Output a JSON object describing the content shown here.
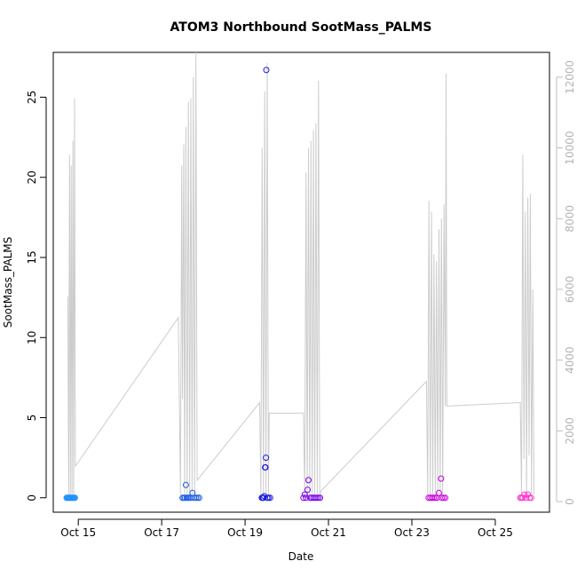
{
  "chart_data": {
    "type": "scatter",
    "title": "ATOM3 Northbound SootMass_PALMS",
    "xlabel": "Date",
    "ylabel": "SootMass_PALMS",
    "x_unit": "days (October)",
    "xlim": [
      14.4,
      26.3
    ],
    "ylim": [
      -0.9,
      27.8
    ],
    "x_ticks": [
      {
        "value": 15,
        "label": "Oct 15"
      },
      {
        "value": 17,
        "label": "Oct 17"
      },
      {
        "value": 19,
        "label": "Oct 19"
      },
      {
        "value": 21,
        "label": "Oct 21"
      },
      {
        "value": 23,
        "label": "Oct 23"
      },
      {
        "value": 25,
        "label": "Oct 25"
      }
    ],
    "y_ticks": [
      0,
      5,
      10,
      15,
      20,
      25
    ],
    "right_axis": {
      "color": "#bebebe",
      "ylim": [
        -300,
        12700
      ],
      "ticks": [
        0,
        2000,
        4000,
        6000,
        8000,
        10000,
        12000
      ]
    },
    "grid": false,
    "series": [
      {
        "color": "#1e90ff",
        "points": [
          [
            14.72,
            0
          ],
          [
            14.74,
            0
          ],
          [
            14.76,
            0
          ],
          [
            14.78,
            0
          ],
          [
            14.8,
            0
          ],
          [
            14.82,
            0
          ],
          [
            14.84,
            0
          ],
          [
            14.86,
            0
          ],
          [
            14.88,
            0
          ],
          [
            14.9,
            0
          ],
          [
            14.92,
            0
          ]
        ]
      },
      {
        "color": "#1c5ae6",
        "points": [
          [
            17.5,
            0
          ],
          [
            17.53,
            0
          ],
          [
            17.56,
            0
          ],
          [
            17.58,
            0.8
          ],
          [
            17.6,
            0
          ],
          [
            17.63,
            0
          ],
          [
            17.66,
            0
          ],
          [
            17.7,
            0
          ],
          [
            17.74,
            0.3
          ],
          [
            17.78,
            0
          ],
          [
            17.82,
            0
          ],
          [
            17.86,
            0
          ],
          [
            17.9,
            0
          ]
        ]
      },
      {
        "color": "#1a1adc",
        "points": [
          [
            19.4,
            0
          ],
          [
            19.42,
            0
          ],
          [
            19.44,
            0
          ],
          [
            19.46,
            0.1
          ],
          [
            19.48,
            1.9
          ],
          [
            19.49,
            1.9
          ],
          [
            19.5,
            2.5
          ],
          [
            19.51,
            26.7
          ],
          [
            19.53,
            0
          ],
          [
            19.56,
            0
          ],
          [
            19.6,
            0
          ]
        ]
      },
      {
        "color": "#7a00e6",
        "points": [
          [
            20.4,
            0
          ],
          [
            20.43,
            0.2
          ],
          [
            20.46,
            0
          ],
          [
            20.5,
            0.5
          ],
          [
            20.52,
            1.1
          ],
          [
            20.56,
            0
          ],
          [
            20.6,
            0
          ],
          [
            20.64,
            0
          ],
          [
            20.68,
            0
          ],
          [
            20.72,
            0
          ],
          [
            20.76,
            0
          ],
          [
            20.8,
            0
          ]
        ]
      },
      {
        "color": "#c800dc",
        "points": [
          [
            23.4,
            0
          ],
          [
            23.44,
            0
          ],
          [
            23.48,
            0
          ],
          [
            23.52,
            0
          ],
          [
            23.56,
            0
          ],
          [
            23.6,
            0
          ],
          [
            23.65,
            0.3
          ],
          [
            23.7,
            1.2
          ],
          [
            23.72,
            0
          ],
          [
            23.76,
            0
          ],
          [
            23.8,
            0
          ]
        ]
      },
      {
        "color": "#ff33cc",
        "points": [
          [
            25.6,
            0
          ],
          [
            25.63,
            0
          ],
          [
            25.66,
            0
          ],
          [
            25.7,
            0.2
          ],
          [
            25.74,
            0
          ],
          [
            25.78,
            0.2
          ],
          [
            25.82,
            0
          ],
          [
            25.86,
            0
          ]
        ]
      }
    ],
    "altitude_trace": {
      "color": "#cccccc",
      "points": [
        [
          14.75,
          5800
        ],
        [
          14.77,
          200
        ],
        [
          14.79,
          9800
        ],
        [
          14.81,
          200
        ],
        [
          14.83,
          9500
        ],
        [
          14.85,
          200
        ],
        [
          14.87,
          10200
        ],
        [
          14.89,
          200
        ],
        [
          14.91,
          11400
        ],
        [
          14.93,
          1000
        ],
        [
          17.4,
          5200
        ],
        [
          17.45,
          200
        ],
        [
          17.48,
          9500
        ],
        [
          17.5,
          2900
        ],
        [
          17.53,
          10100
        ],
        [
          17.55,
          200
        ],
        [
          17.58,
          10600
        ],
        [
          17.61,
          200
        ],
        [
          17.64,
          11300
        ],
        [
          17.67,
          200
        ],
        [
          17.7,
          11400
        ],
        [
          17.73,
          200
        ],
        [
          17.76,
          12000
        ],
        [
          17.79,
          200
        ],
        [
          17.82,
          12700
        ],
        [
          17.85,
          600
        ],
        [
          19.35,
          2800
        ],
        [
          19.38,
          200
        ],
        [
          19.41,
          10000
        ],
        [
          19.44,
          200
        ],
        [
          19.47,
          11600
        ],
        [
          19.5,
          200
        ],
        [
          19.53,
          12400
        ],
        [
          19.56,
          200
        ],
        [
          19.58,
          2500
        ],
        [
          20.4,
          2500
        ],
        [
          20.43,
          200
        ],
        [
          20.46,
          9300
        ],
        [
          20.49,
          200
        ],
        [
          20.52,
          10000
        ],
        [
          20.55,
          200
        ],
        [
          20.58,
          10200
        ],
        [
          20.61,
          200
        ],
        [
          20.64,
          10500
        ],
        [
          20.67,
          200
        ],
        [
          20.7,
          10700
        ],
        [
          20.73,
          200
        ],
        [
          20.76,
          11900
        ],
        [
          20.79,
          200
        ],
        [
          20.82,
          300
        ],
        [
          23.35,
          3400
        ],
        [
          23.38,
          200
        ],
        [
          23.41,
          8500
        ],
        [
          23.44,
          200
        ],
        [
          23.47,
          8200
        ],
        [
          23.5,
          200
        ],
        [
          23.53,
          7000
        ],
        [
          23.56,
          200
        ],
        [
          23.59,
          6800
        ],
        [
          23.62,
          200
        ],
        [
          23.65,
          7700
        ],
        [
          23.68,
          200
        ],
        [
          23.71,
          8000
        ],
        [
          23.74,
          200
        ],
        [
          23.77,
          8400
        ],
        [
          23.8,
          2700
        ],
        [
          23.82,
          12100
        ],
        [
          23.84,
          2700
        ],
        [
          25.6,
          2800
        ],
        [
          25.63,
          200
        ],
        [
          25.66,
          9800
        ],
        [
          25.69,
          1200
        ],
        [
          25.72,
          8200
        ],
        [
          25.75,
          200
        ],
        [
          25.78,
          8600
        ],
        [
          25.81,
          1300
        ],
        [
          25.84,
          8700
        ],
        [
          25.87,
          200
        ],
        [
          25.9,
          6000
        ],
        [
          25.93,
          200
        ]
      ]
    }
  }
}
